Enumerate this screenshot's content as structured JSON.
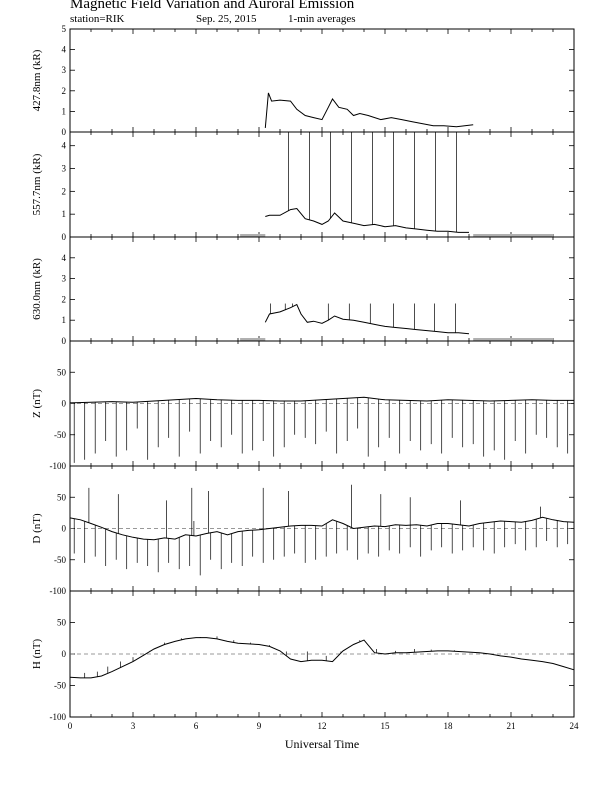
{
  "header": {
    "title": "Magnetic Field Variation and Auroral Emission",
    "station": "station=RIK",
    "date": "Sep. 25, 2015",
    "averaging": "1-min averages"
  },
  "chart_data": [
    {
      "type": "line",
      "ylabel": "427.8nm (kR)",
      "xlim": [
        0,
        24
      ],
      "ylim": [
        0,
        5
      ],
      "yticks": [
        0,
        1,
        2,
        3,
        4,
        5
      ],
      "series": [
        {
          "x": [
            9.3,
            9.45,
            9.6,
            10.0,
            10.5,
            10.8,
            11.2,
            11.6,
            12.0,
            12.3,
            12.5,
            12.8,
            13.2,
            13.5,
            13.8,
            14.2,
            14.8,
            15.3,
            15.8,
            16.3,
            16.8,
            17.3,
            17.8,
            18.4,
            18.8,
            19.2
          ],
          "y": [
            0.2,
            1.9,
            1.5,
            1.55,
            1.5,
            1.1,
            0.8,
            0.7,
            0.6,
            1.2,
            1.6,
            1.2,
            1.1,
            0.8,
            0.9,
            0.8,
            0.6,
            0.7,
            0.6,
            0.5,
            0.4,
            0.3,
            0.3,
            0.25,
            0.3,
            0.35
          ]
        }
      ],
      "spikes": [],
      "grey_bars": []
    },
    {
      "type": "line",
      "ylabel": "557.7nm (kR)",
      "xlim": [
        0,
        24
      ],
      "ylim": [
        0,
        4.6
      ],
      "yticks": [
        0,
        1,
        2,
        3,
        4
      ],
      "series": [
        {
          "x": [
            9.3,
            9.5,
            10.0,
            10.5,
            10.8,
            11.2,
            11.6,
            12.0,
            12.3,
            12.6,
            13.0,
            13.5,
            14.0,
            14.5,
            15.0,
            15.5,
            16.0,
            16.5,
            17.0,
            17.5,
            18.0,
            18.5,
            19.0
          ],
          "y": [
            0.9,
            0.95,
            0.95,
            1.2,
            1.25,
            0.8,
            0.7,
            0.55,
            0.7,
            1.05,
            0.7,
            0.6,
            0.5,
            0.55,
            0.45,
            0.5,
            0.4,
            0.35,
            0.3,
            0.25,
            0.25,
            0.2,
            0.2
          ]
        }
      ],
      "spikes": [
        10.4,
        11.4,
        12.4,
        13.4,
        14.4,
        15.4,
        16.4,
        17.4,
        18.4
      ],
      "spike_value": 4.6,
      "grey_bars": [
        [
          8.1,
          9.3
        ],
        [
          19.2,
          23.0
        ]
      ]
    },
    {
      "type": "line",
      "ylabel": "630.0nm (kR)",
      "xlim": [
        0,
        24
      ],
      "ylim": [
        0,
        5
      ],
      "yticks": [
        0,
        1,
        2,
        3,
        4
      ],
      "series": [
        {
          "x": [
            9.3,
            9.5,
            10.0,
            10.5,
            10.8,
            11.0,
            11.3,
            11.6,
            12.0,
            12.3,
            12.6,
            13.0,
            13.5,
            14.0,
            14.5,
            15.0,
            15.5,
            16.0,
            16.5,
            17.0,
            17.5,
            18.0,
            18.5,
            19.0
          ],
          "y": [
            0.9,
            1.3,
            1.4,
            1.6,
            1.75,
            1.3,
            0.9,
            0.95,
            0.85,
            1.0,
            1.2,
            1.05,
            1.0,
            0.9,
            0.8,
            0.7,
            0.65,
            0.6,
            0.55,
            0.5,
            0.45,
            0.4,
            0.4,
            0.35
          ]
        }
      ],
      "spikes": [
        9.55,
        10.25,
        10.6,
        12.3,
        13.3,
        14.3,
        15.4,
        16.4,
        17.35,
        18.35
      ],
      "spike_value": 1.8,
      "grey_bars": [
        [
          8.1,
          9.3
        ],
        [
          19.2,
          23.0
        ]
      ]
    },
    {
      "type": "line",
      "ylabel": "Z (nT)",
      "xlim": [
        0,
        24
      ],
      "ylim": [
        -100,
        100
      ],
      "yticks": [
        -100,
        -50,
        0,
        50
      ],
      "series": [
        {
          "x": [
            0,
            1,
            2,
            3,
            4,
            5,
            6,
            7,
            8,
            9,
            10,
            11,
            12,
            13,
            14,
            15,
            16,
            17,
            18,
            19,
            20,
            21,
            22,
            23,
            24
          ],
          "y": [
            1,
            2,
            3,
            2,
            4,
            6,
            8,
            6,
            5,
            5,
            4,
            4,
            6,
            8,
            10,
            6,
            5,
            4,
            6,
            5,
            4,
            5,
            6,
            5,
            5
          ]
        }
      ],
      "spikes": [
        0.2,
        0.7,
        1.2,
        1.7,
        2.2,
        2.7,
        3.2,
        3.7,
        4.2,
        4.7,
        5.2,
        5.7,
        6.2,
        6.7,
        7.2,
        7.7,
        8.2,
        8.7,
        9.2,
        9.7,
        10.2,
        10.7,
        11.2,
        11.7,
        12.2,
        12.7,
        13.2,
        13.7,
        14.2,
        14.7,
        15.2,
        15.7,
        16.2,
        16.7,
        17.2,
        17.7,
        18.2,
        18.7,
        19.2,
        19.7,
        20.2,
        20.7,
        21.2,
        21.7,
        22.2,
        22.7,
        23.2,
        23.7
      ],
      "spike_depths": [
        -95,
        -90,
        -80,
        -60,
        -85,
        -75,
        -40,
        -90,
        -70,
        -55,
        -85,
        -45,
        -80,
        -60,
        -70,
        -50,
        -80,
        -75,
        -60,
        -85,
        -70,
        -50,
        -55,
        -65,
        -45,
        -80,
        -60,
        -40,
        -85,
        -70,
        -55,
        -80,
        -60,
        -75,
        -65,
        -80,
        -55,
        -70,
        -65,
        -85,
        -75,
        -90,
        -60,
        -80,
        -50,
        -55,
        -70,
        -80
      ],
      "zero_line": true,
      "grey_bars": []
    },
    {
      "type": "line",
      "ylabel": "D (nT)",
      "xlim": [
        0,
        24
      ],
      "ylim": [
        -100,
        100
      ],
      "yticks": [
        -100,
        -50,
        0,
        50
      ],
      "series": [
        {
          "x": [
            0,
            0.5,
            1,
            1.5,
            2,
            2.5,
            3,
            3.5,
            4,
            4.5,
            5,
            5.5,
            6,
            6.5,
            7,
            7.5,
            8,
            8.5,
            9,
            9.5,
            10,
            10.5,
            11,
            11.5,
            12,
            12.5,
            13,
            13.5,
            14,
            14.5,
            15,
            15.5,
            16,
            16.5,
            17,
            17.5,
            18,
            18.5,
            19,
            19.5,
            20,
            20.5,
            21,
            21.5,
            22,
            22.5,
            23,
            23.5,
            24
          ],
          "y": [
            17,
            14,
            8,
            2,
            -5,
            -10,
            -14,
            -17,
            -18,
            -15,
            -17,
            -10,
            -12,
            -8,
            -5,
            -10,
            -5,
            -3,
            -2,
            0,
            2,
            4,
            5,
            5,
            4,
            14,
            8,
            0,
            2,
            4,
            3,
            6,
            5,
            6,
            4,
            8,
            8,
            6,
            4,
            8,
            10,
            12,
            11,
            10,
            13,
            18,
            14,
            11,
            10
          ]
        }
      ],
      "spikes": [
        0.2,
        0.7,
        1.2,
        1.7,
        2.2,
        2.7,
        3.2,
        3.7,
        4.2,
        4.7,
        5.2,
        5.7,
        6.2,
        6.7,
        7.2,
        7.7,
        8.2,
        8.7,
        9.2,
        9.7,
        10.2,
        10.7,
        11.2,
        11.7,
        12.2,
        12.7,
        13.2,
        13.7,
        14.2,
        14.7,
        15.2,
        15.7,
        16.2,
        16.7,
        17.2,
        17.7,
        18.2,
        18.7,
        19.2,
        19.7,
        20.2,
        20.7,
        21.2,
        21.7,
        22.2,
        22.7,
        23.2,
        23.7
      ],
      "spike_depths": [
        -40,
        -55,
        -45,
        -60,
        -50,
        -65,
        -55,
        -60,
        -70,
        -55,
        -65,
        -60,
        -75,
        -50,
        -65,
        -55,
        -60,
        -45,
        -55,
        -50,
        -45,
        -40,
        -55,
        -50,
        -45,
        -40,
        -35,
        -50,
        -40,
        -45,
        -35,
        -40,
        -30,
        -45,
        -35,
        -30,
        -40,
        -35,
        -30,
        -35,
        -40,
        -30,
        -25,
        -35,
        -30,
        -20,
        -30,
        -25
      ],
      "spike_ups": [
        [
          0.9,
          65
        ],
        [
          2.3,
          55
        ],
        [
          4.6,
          45
        ],
        [
          5.8,
          65
        ],
        [
          5.9,
          12
        ],
        [
          6.6,
          60
        ],
        [
          9.2,
          65
        ],
        [
          10.4,
          60
        ],
        [
          13.4,
          70
        ],
        [
          14.8,
          55
        ],
        [
          16.2,
          50
        ],
        [
          18.6,
          45
        ],
        [
          22.4,
          35
        ]
      ],
      "zero_line": true,
      "grey_bars": []
    },
    {
      "type": "line",
      "ylabel": "H (nT)",
      "xlim": [
        0,
        24
      ],
      "ylim": [
        -100,
        100
      ],
      "yticks": [
        -100,
        -50,
        0,
        50
      ],
      "xticks": [
        0,
        3,
        6,
        9,
        12,
        15,
        18,
        21,
        24
      ],
      "xlabel": "Universal Time",
      "series": [
        {
          "x": [
            0,
            0.5,
            1,
            1.5,
            2,
            2.5,
            3,
            3.5,
            4,
            4.5,
            5,
            5.5,
            6,
            6.5,
            7,
            7.5,
            8,
            8.5,
            9,
            9.5,
            10,
            10.5,
            11,
            11.5,
            12,
            12.5,
            13,
            13.5,
            14,
            14.5,
            15,
            15.5,
            16,
            16.5,
            17,
            17.5,
            18,
            18.5,
            19,
            19.5,
            20,
            20.5,
            21,
            21.5,
            22,
            22.5,
            23,
            23.5,
            24
          ],
          "y": [
            -37,
            -38,
            -38,
            -35,
            -28,
            -20,
            -12,
            -2,
            8,
            15,
            20,
            24,
            26,
            26,
            24,
            20,
            17,
            16,
            15,
            12,
            5,
            -8,
            -12,
            -10,
            -10,
            -12,
            5,
            15,
            22,
            2,
            0,
            2,
            2,
            3,
            4,
            5,
            5,
            4,
            3,
            2,
            0,
            -3,
            -5,
            -8,
            -10,
            -12,
            -15,
            -20,
            -25
          ]
        }
      ],
      "spike_ups": [
        [
          0.7,
          -30
        ],
        [
          1.3,
          -28
        ],
        [
          1.8,
          -20
        ],
        [
          2.4,
          -12
        ],
        [
          3.0,
          -5
        ],
        [
          3.8,
          5
        ],
        [
          4.5,
          18
        ],
        [
          5.3,
          25
        ],
        [
          6.2,
          27
        ],
        [
          7.0,
          28
        ],
        [
          7.8,
          22
        ],
        [
          8.6,
          18
        ],
        [
          9.5,
          14
        ],
        [
          10.3,
          4
        ],
        [
          11.3,
          4
        ],
        [
          12.2,
          -3
        ],
        [
          12.9,
          4
        ],
        [
          13.8,
          22
        ],
        [
          14.6,
          8
        ],
        [
          15.5,
          5
        ],
        [
          16.4,
          8
        ],
        [
          17.2,
          7
        ],
        [
          18.3,
          6
        ]
      ],
      "zero_line": true,
      "grey_bars": []
    }
  ]
}
